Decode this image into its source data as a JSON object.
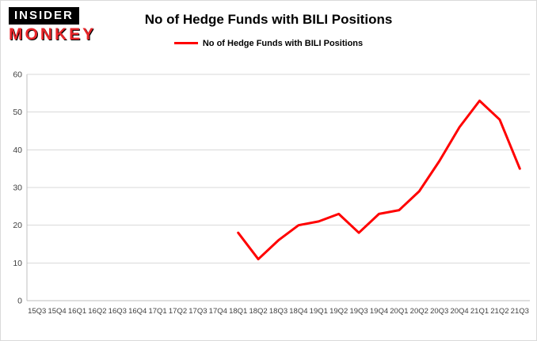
{
  "logo": {
    "top": "INSIDER",
    "bottom": "MONKEY"
  },
  "chart_data": {
    "type": "line",
    "title": "No of Hedge Funds with BILI Positions",
    "legend": "No of Hedge Funds with BILI Positions",
    "categories": [
      "15Q3",
      "15Q4",
      "16Q1",
      "16Q2",
      "16Q3",
      "16Q4",
      "17Q1",
      "17Q2",
      "17Q3",
      "17Q4",
      "18Q1",
      "18Q2",
      "18Q3",
      "18Q4",
      "19Q1",
      "19Q2",
      "19Q3",
      "19Q4",
      "20Q1",
      "20Q2",
      "20Q3",
      "20Q4",
      "21Q1",
      "21Q2",
      "21Q3"
    ],
    "values": [
      null,
      null,
      null,
      null,
      null,
      null,
      null,
      null,
      null,
      null,
      18,
      11,
      16,
      20,
      21,
      23,
      18,
      23,
      24,
      29,
      37,
      46,
      53,
      48,
      35
    ],
    "ylim": [
      0,
      60
    ],
    "yticks": [
      0,
      10,
      20,
      30,
      40,
      50,
      60
    ],
    "line_color": "#ff0000",
    "grid_color": "#d9d9d9",
    "axis_color": "#bfbfbf",
    "grid": true,
    "legend_position": "top"
  }
}
